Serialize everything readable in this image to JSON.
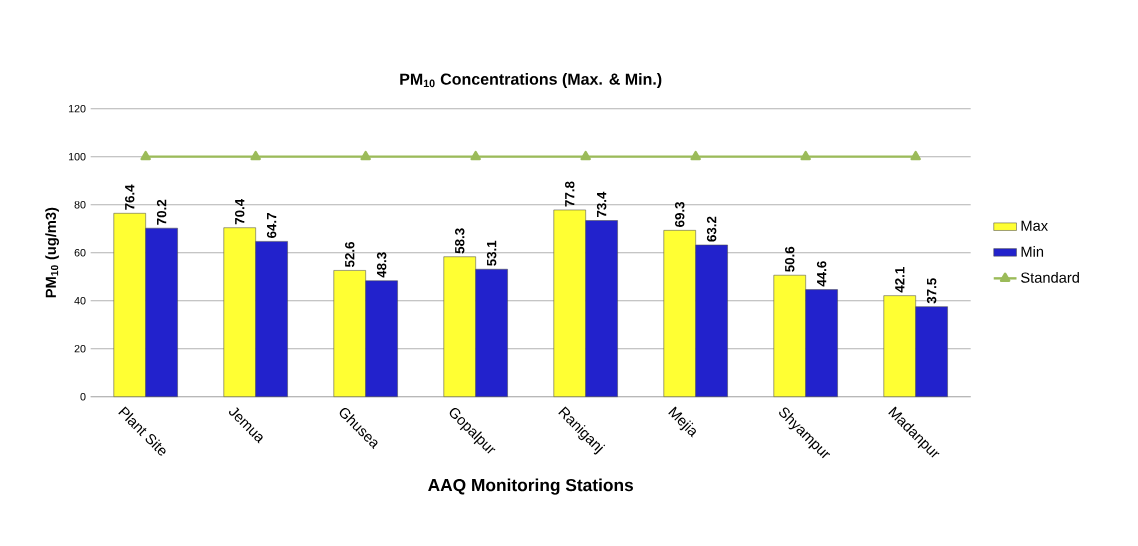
{
  "chart_data": {
    "type": "bar",
    "title": "PM$_{10}$ Concentrations (Max. & Min.)",
    "xlabel": "AAQ Monitoring Stations",
    "ylabel": "PM$_{10}$ (ug/m3)",
    "categories": [
      "Plant Site",
      "Jemua",
      "Ghusea",
      "Gopalpur",
      "Raniganj",
      "Mejia",
      "Shyampur",
      "Madanpur"
    ],
    "series": [
      {
        "name": "Max",
        "color": "#ffff33",
        "values": [
          76.4,
          70.4,
          52.6,
          58.3,
          77.8,
          69.3,
          50.6,
          42.1
        ],
        "value_labels": [
          "76.4",
          "70.4",
          "52.6",
          "58.3",
          "77.8",
          "69.3",
          "50.6",
          "42.1"
        ]
      },
      {
        "name": "Min",
        "color": "#2222cc",
        "values": [
          70.2,
          64.7,
          48.3,
          53.1,
          73.4,
          63.2,
          44.6,
          37.5
        ],
        "value_labels": [
          "70.2",
          "64.7",
          "48.3",
          "53.1",
          "73.4",
          "63.2",
          "44.6",
          "37.5"
        ]
      },
      {
        "name": "Standard",
        "type": "line",
        "color": "#9bbb59",
        "marker": "triangle",
        "values": [
          100,
          100,
          100,
          100,
          100,
          100,
          100,
          100
        ]
      }
    ],
    "ylim": [
      0,
      120
    ],
    "yticks": [
      0,
      20,
      40,
      60,
      80,
      100,
      120
    ],
    "grid": "y",
    "legend": "right"
  }
}
